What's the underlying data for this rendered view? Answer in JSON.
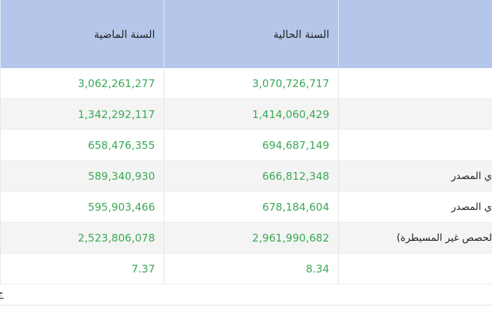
{
  "table": {
    "header": [
      "",
      "السنة الحالية",
      "السنة الماضية"
    ],
    "rows": [
      [
        "",
        "3,070,726,717",
        "3,062,261,277"
      ],
      [
        "",
        "1,414,060,429",
        "1,342,292,117"
      ],
      [
        "",
        "694,687,149",
        "658,476,355"
      ],
      [
        "ي المصدر",
        "666,812,348",
        "589,340,930"
      ],
      [
        "ي المصدر",
        "678,184,604",
        "595,903,466"
      ],
      [
        "لحصص غير المسيطرة)",
        "2,961,990,682",
        "2,523,806,078"
      ],
      [
        "",
        "8.34",
        "7.37"
      ]
    ]
  },
  "footer": {
    "text": "ج"
  }
}
